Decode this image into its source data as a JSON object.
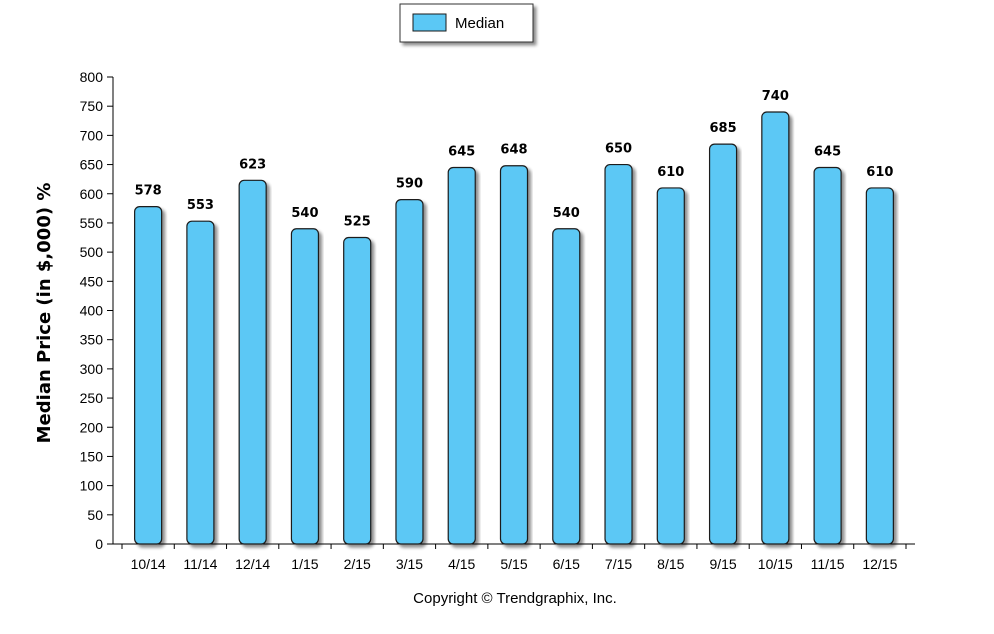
{
  "chart_data": {
    "type": "bar",
    "categories": [
      "10/14",
      "11/14",
      "12/14",
      "1/15",
      "2/15",
      "3/15",
      "4/15",
      "5/15",
      "6/15",
      "7/15",
      "8/15",
      "9/15",
      "10/15",
      "11/15",
      "12/15"
    ],
    "series": [
      {
        "name": "Median",
        "values": [
          578,
          553,
          623,
          540,
          525,
          590,
          645,
          648,
          540,
          650,
          610,
          685,
          740,
          645,
          610
        ]
      }
    ],
    "title": "",
    "xlabel": "",
    "ylabel": "Median Price (in $,000) %",
    "ylim": [
      0,
      800
    ],
    "ytick_step": 50,
    "grid": false,
    "legend_position": "top-center",
    "bar_color": "#5bc8f5",
    "bar_border_color": "#1a1a1a"
  },
  "footer": {
    "copyright": "Copyright © Trendgraphix, Inc."
  }
}
